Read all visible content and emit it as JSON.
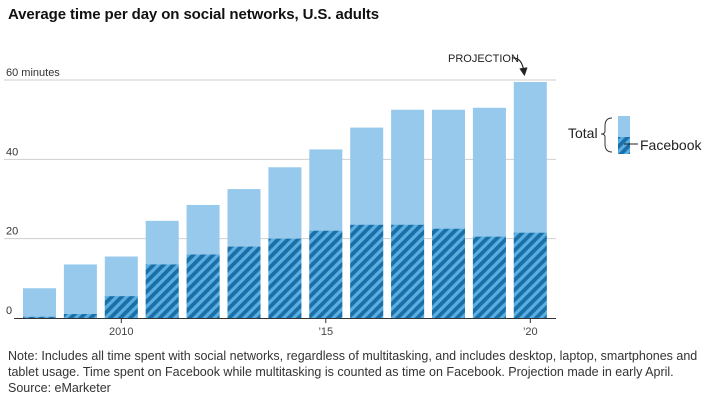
{
  "title": "Average time per day on social networks, U.S. adults",
  "colors": {
    "total": "#96c9ec",
    "facebook_stripe_a": "#1a6fa8",
    "facebook_stripe_b": "#5aaee0",
    "grid": "#cfcfcf",
    "axis": "#333333"
  },
  "note": {
    "line1": "Note: Includes all time spent with social networks, regardless of multitasking, and includes desktop, laptop, smartphones and",
    "line2": "tablet usage. Time spent on Facebook while multitasking is counted as time on Facebook. Projection made in early April.",
    "source": "Source: eMarketer"
  },
  "chart_data": {
    "type": "bar",
    "title": "Average time per day on social networks, U.S. adults",
    "x": [
      2008,
      2009,
      2010,
      2011,
      2012,
      2013,
      2014,
      2015,
      2016,
      2017,
      2018,
      2019,
      2020
    ],
    "x_tick_labels": [
      {
        "x": 2010,
        "label": "2010"
      },
      {
        "x": 2015,
        "label": "’15"
      },
      {
        "x": 2020,
        "label": "’20"
      }
    ],
    "y_tick_labels": [
      {
        "y": 60,
        "label": "60 minutes"
      },
      {
        "y": 40,
        "label": "40"
      },
      {
        "y": 20,
        "label": "20"
      },
      {
        "y": 0,
        "label": "0"
      }
    ],
    "ylim": [
      0,
      60
    ],
    "grid": true,
    "legend_position": "right",
    "series": [
      {
        "name": "Total",
        "values": [
          7.5,
          13.5,
          15.5,
          24.5,
          28.5,
          32.5,
          38,
          42.5,
          48,
          52.5,
          52.5,
          53,
          59.5
        ]
      },
      {
        "name": "Facebook",
        "values": [
          0.3,
          1,
          5.5,
          13.5,
          16,
          18,
          20,
          22,
          23.5,
          23.5,
          22.5,
          20.5,
          21.5
        ]
      }
    ],
    "annotation": "PROJECTION"
  }
}
